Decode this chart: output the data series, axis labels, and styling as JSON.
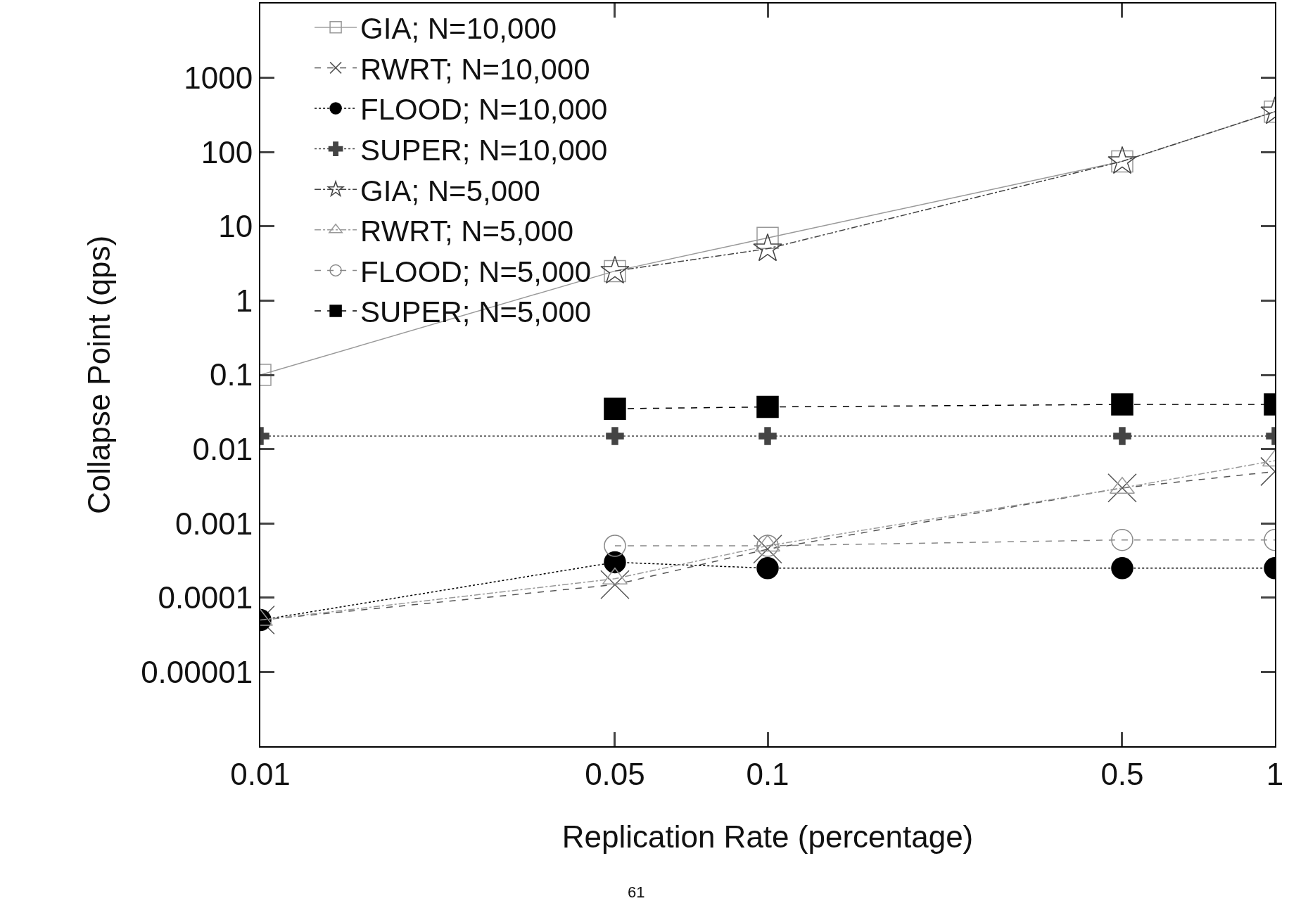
{
  "chart_data": {
    "type": "line",
    "xlabel": "Replication Rate (percentage)",
    "ylabel": "Collapse Point (qps)",
    "log": "xy",
    "x": [
      0.01,
      0.05,
      0.1,
      0.5,
      1
    ],
    "xlim": [
      0.01,
      1
    ],
    "xticks": [
      0.01,
      0.05,
      0.1,
      0.5,
      1
    ],
    "ylim": [
      1e-06,
      10000
    ],
    "yticks": [
      {
        "value": 1e-06,
        "label": null
      },
      {
        "value": 1e-05,
        "label": "0.00001"
      },
      {
        "value": 0.0001,
        "label": "0.0001"
      },
      {
        "value": 0.001,
        "label": "0.001"
      },
      0.01,
      0.1,
      1,
      10,
      100,
      1000,
      {
        "value": 10000,
        "label": null
      }
    ],
    "grid": false,
    "legend": "top left",
    "annotations": [
      "61"
    ],
    "series": [
      {
        "name": "GIA; N=10,000",
        "color": "#999999",
        "marker": "square",
        "line_style": "solid",
        "values": [
          0.1,
          2.5,
          7,
          75,
          350
        ]
      },
      {
        "name": "RWRT; N=10,000",
        "color": "#555555",
        "marker": "cross",
        "line_style": "dashed",
        "values": [
          5e-05,
          0.00015,
          0.00045,
          0.003,
          0.005
        ]
      },
      {
        "name": "FLOOD; N=10,000",
        "color": "#000000",
        "marker": "circle",
        "line_style": "dotted",
        "values": [
          5e-05,
          0.0003,
          0.00025,
          0.00025,
          0.00025
        ]
      },
      {
        "name": "SUPER; N=10,000",
        "color": "#444444",
        "marker": "cross",
        "line_style": "dotted",
        "values": [
          0.015,
          0.015,
          0.015,
          0.015,
          0.015
        ]
      },
      {
        "name": "GIA; N=5,000",
        "color": "#444444",
        "marker": "star",
        "line_style": "dashdot",
        "values": [
          null,
          2.5,
          5,
          75,
          350
        ]
      },
      {
        "name": "RWRT; N=5,000",
        "color": "#999999",
        "marker": "triangle",
        "line_style": "dashdot",
        "values": [
          5e-05,
          0.00018,
          0.0005,
          0.003,
          0.007
        ]
      },
      {
        "name": "FLOOD; N=5,000",
        "color": "#888888",
        "marker": "circle",
        "line_style": "dashed",
        "values": [
          null,
          0.0005,
          0.0005,
          0.0006,
          0.0006
        ]
      },
      {
        "name": "SUPER; N=5,000",
        "color": "#000000",
        "marker": "square",
        "line_style": "dashed",
        "values": [
          null,
          0.035,
          0.037,
          0.04,
          0.04
        ]
      }
    ]
  }
}
